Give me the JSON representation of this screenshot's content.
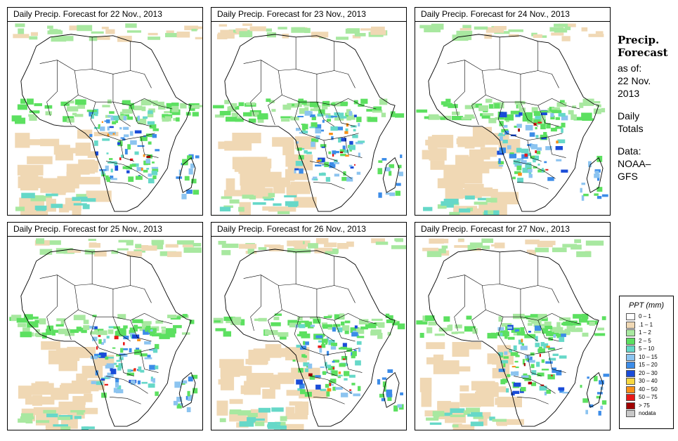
{
  "panels": [
    {
      "title": "Daily Precip. Forecast for  22 Nov., 2013",
      "seed": 11
    },
    {
      "title": "Daily Precip. Forecast for  23 Nov., 2013",
      "seed": 23
    },
    {
      "title": "Daily Precip. Forecast for  24 Nov., 2013",
      "seed": 37
    },
    {
      "title": "Daily Precip. Forecast for  25 Nov., 2013",
      "seed": 41
    },
    {
      "title": "Daily Precip. Forecast for  26 Nov., 2013",
      "seed": 53
    },
    {
      "title": "Daily Precip. Forecast for  27 Nov., 2013",
      "seed": 67
    }
  ],
  "side": {
    "heading_line1": "Precip.",
    "heading_line2": "Forecast",
    "asof_line1": "as of:",
    "asof_line2": "22 Nov.",
    "asof_line3": "2013",
    "totals_line1": "Daily",
    "totals_line2": "Totals",
    "data_line1": "Data:",
    "data_line2": "NOAA–",
    "data_line3": "GFS"
  },
  "legend": {
    "title": "PPT (mm)",
    "items": [
      {
        "label": "0 – 1",
        "color": "#ffffff"
      },
      {
        "label": ".1 – 1",
        "color": "#f0d8b4"
      },
      {
        "label": "1 – 2",
        "color": "#a8e8a0"
      },
      {
        "label": "2 – 5",
        "color": "#5ce060"
      },
      {
        "label": "5 – 10",
        "color": "#66d8c8"
      },
      {
        "label": "10 – 15",
        "color": "#8cc4f0"
      },
      {
        "label": "15 – 20",
        "color": "#3c8ce8"
      },
      {
        "label": "20 – 30",
        "color": "#1a4cd8"
      },
      {
        "label": "30 – 40",
        "color": "#f8d840"
      },
      {
        "label": "40 – 50",
        "color": "#f89018"
      },
      {
        "label": "50 – 75",
        "color": "#e81818"
      },
      {
        "label": "> 75",
        "color": "#a00000"
      },
      {
        "label": "nodata",
        "color": "#c8c8c8"
      }
    ]
  },
  "colors": {
    "land": "#ffffff",
    "border": "#000000"
  }
}
